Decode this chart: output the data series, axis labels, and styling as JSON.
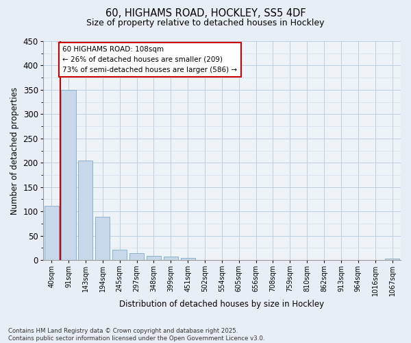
{
  "title1": "60, HIGHAMS ROAD, HOCKLEY, SS5 4DF",
  "title2": "Size of property relative to detached houses in Hockley",
  "xlabel": "Distribution of detached houses by size in Hockley",
  "ylabel": "Number of detached properties",
  "categories": [
    "40sqm",
    "91sqm",
    "143sqm",
    "194sqm",
    "245sqm",
    "297sqm",
    "348sqm",
    "399sqm",
    "451sqm",
    "502sqm",
    "554sqm",
    "605sqm",
    "656sqm",
    "708sqm",
    "759sqm",
    "810sqm",
    "862sqm",
    "913sqm",
    "964sqm",
    "1016sqm",
    "1067sqm"
  ],
  "values": [
    111,
    350,
    204,
    89,
    22,
    14,
    9,
    7,
    4,
    0,
    0,
    0,
    0,
    0,
    0,
    0,
    0,
    0,
    0,
    0,
    3
  ],
  "bar_color": "#c8d8ea",
  "bar_edge_color": "#7aaac8",
  "vline_x": 0.5,
  "vline_color": "#cc0000",
  "ylim": [
    0,
    450
  ],
  "yticks": [
    0,
    50,
    100,
    150,
    200,
    250,
    300,
    350,
    400,
    450
  ],
  "annotation_text": "60 HIGHAMS ROAD: 108sqm\n← 26% of detached houses are smaller (209)\n73% of semi-detached houses are larger (586) →",
  "annotation_box_color": "#ffffff",
  "annotation_box_edge": "#cc0000",
  "bg_color": "#e8eef5",
  "plot_bg_color": "#eef3f8",
  "footer_text": "Contains HM Land Registry data © Crown copyright and database right 2025.\nContains public sector information licensed under the Open Government Licence v3.0.",
  "figsize": [
    6.0,
    5.0
  ],
  "dpi": 100
}
